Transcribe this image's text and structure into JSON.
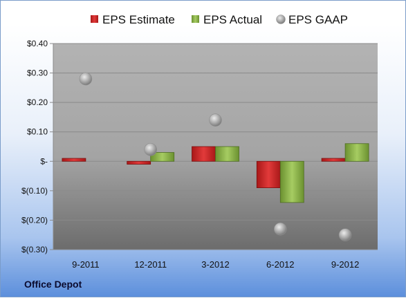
{
  "chart_data": {
    "type": "bar",
    "categories": [
      "9-2011",
      "12-2011",
      "3-2012",
      "6-2012",
      "9-2012"
    ],
    "series": [
      {
        "name": "EPS Estimate",
        "kind": "bar",
        "values": [
          0.01,
          -0.01,
          0.05,
          -0.09,
          0.01
        ]
      },
      {
        "name": "EPS Actual",
        "kind": "bar",
        "values": [
          null,
          0.03,
          0.05,
          -0.14,
          0.06
        ]
      },
      {
        "name": "EPS GAAP",
        "kind": "point",
        "values": [
          0.28,
          0.04,
          0.14,
          -0.23,
          -0.25
        ]
      }
    ],
    "yticks": [
      0.4,
      0.3,
      0.2,
      0.1,
      0,
      -0.1,
      -0.2,
      -0.3
    ],
    "ytick_labels": [
      "$0.40",
      "$0.30",
      "$0.20",
      "$0.10",
      "$-",
      "$(0.10)",
      "$(0.20)",
      "$(0.30)"
    ],
    "ylim": [
      -0.3,
      0.4
    ],
    "legend_position": "top",
    "grid": true,
    "colors": {
      "estimate": "#d42a2a",
      "actual": "#8db44a",
      "gaap": "#a8a8a8"
    }
  },
  "footer": {
    "company": "Office Depot"
  }
}
